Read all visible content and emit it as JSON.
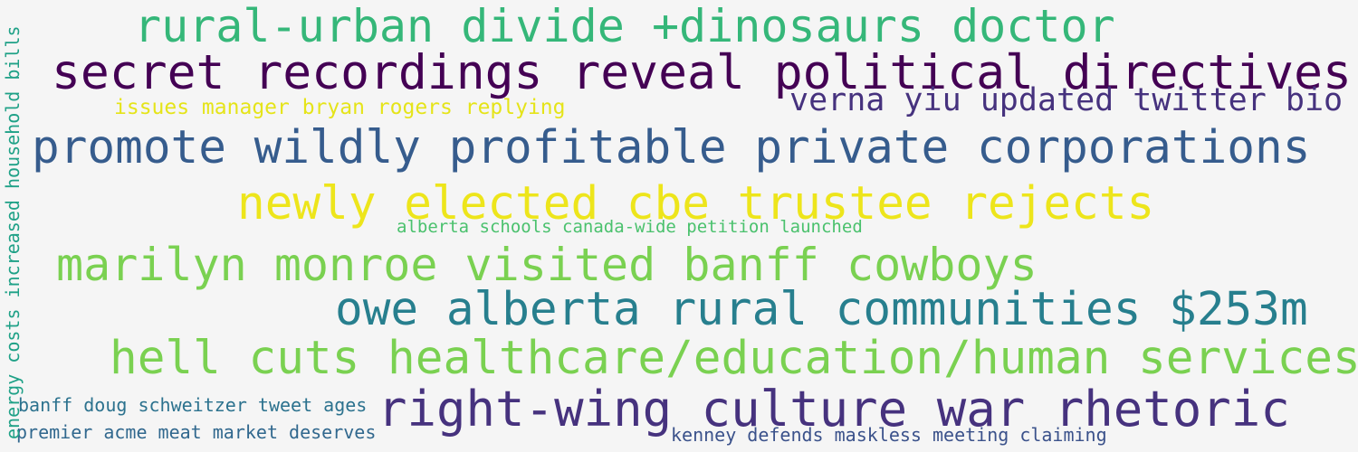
{
  "words": [
    {
      "text": "rural-urban divide +dinosaurs doctor",
      "color": "#35b779"
    },
    {
      "text": "secret recordings reveal political directives",
      "color": "#440154"
    },
    {
      "text": "verna yiu updated twitter bio",
      "color": "#46327e"
    },
    {
      "text": "issues manager bryan rogers replying",
      "color": "#e5e419"
    },
    {
      "text": "promote wildly profitable private corporations",
      "color": "#365c8d"
    },
    {
      "text": "newly elected cbe trustee rejects",
      "color": "#ede51b"
    },
    {
      "text": "alberta schools canada-wide petition launched",
      "color": "#4ac16d"
    },
    {
      "text": "marilyn monroe visited banff cowboys",
      "color": "#7ad151"
    },
    {
      "text": "owe alberta rural communities $253m",
      "color": "#277f8e"
    },
    {
      "text": "hell cuts healthcare/education/human services",
      "color": "#7ad151"
    },
    {
      "text": "banff doug schweitzer tweet ages",
      "color": "#2c728e"
    },
    {
      "text": "right-wing culture war rhetoric",
      "color": "#46327e"
    },
    {
      "text": "premier acme meat market deserves",
      "color": "#31688e"
    },
    {
      "text": "kenney defends maskless meeting claiming",
      "color": "#3b528b"
    },
    {
      "text": "energy costs increased household bills",
      "color": "#1fa187"
    }
  ]
}
